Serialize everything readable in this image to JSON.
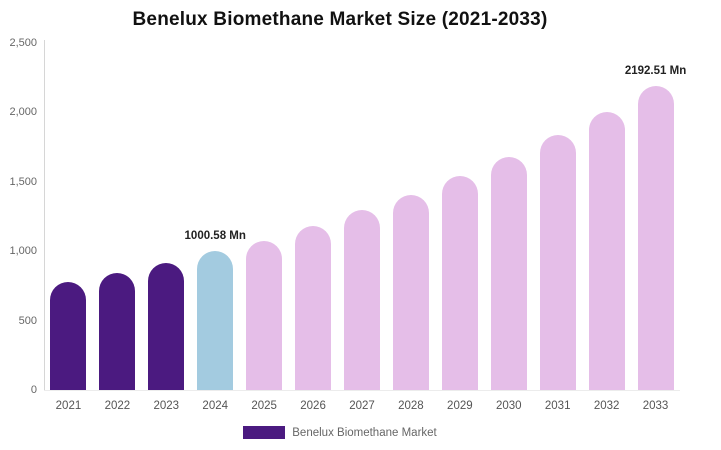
{
  "title": "Benelux Biomethane Market Size (2021-2033)",
  "legend": {
    "label": "Benelux Biomethane Market",
    "swatch_color": "#4B1A80"
  },
  "colors": {
    "historical_bar": "#4B1A80",
    "base_year_bar": "#A3CBE0",
    "forecast_bar": "#E5BEE8",
    "title_text": "#111111",
    "axis_text": "#666666",
    "data_label_text": "#222222",
    "axis_line": "#d6d6d6",
    "baseline": "#ececec"
  },
  "chart_data": {
    "type": "bar",
    "title": "Benelux Biomethane Market Size (2021-2033)",
    "xlabel": "",
    "ylabel": "",
    "unit": "Mn",
    "categories": [
      "2021",
      "2022",
      "2023",
      "2024",
      "2025",
      "2026",
      "2027",
      "2028",
      "2029",
      "2030",
      "2031",
      "2032",
      "2033"
    ],
    "values": [
      775,
      846,
      917,
      1000.58,
      1077,
      1185,
      1294,
      1402,
      1539,
      1676,
      1840,
      2003,
      2192.51
    ],
    "bar_colors": [
      "#4B1A80",
      "#4B1A80",
      "#4B1A80",
      "#A3CBE0",
      "#E5BEE8",
      "#E5BEE8",
      "#E5BEE8",
      "#E5BEE8",
      "#E5BEE8",
      "#E5BEE8",
      "#E5BEE8",
      "#E5BEE8",
      "#E5BEE8"
    ],
    "ylim": [
      0,
      2500
    ],
    "y_ticks": [
      {
        "value": 0,
        "label": "0"
      },
      {
        "value": 500,
        "label": "500"
      },
      {
        "value": 1000,
        "label": "1,000"
      },
      {
        "value": 1500,
        "label": "1,500"
      },
      {
        "value": 2000,
        "label": "2,000"
      },
      {
        "value": 2500,
        "label": "2,500"
      }
    ],
    "grid": false,
    "legend_position": "bottom",
    "annotations": [
      {
        "category": "2024",
        "text": "1000.58 Mn"
      },
      {
        "category": "2033",
        "text": "2192.51 Mn"
      }
    ]
  }
}
